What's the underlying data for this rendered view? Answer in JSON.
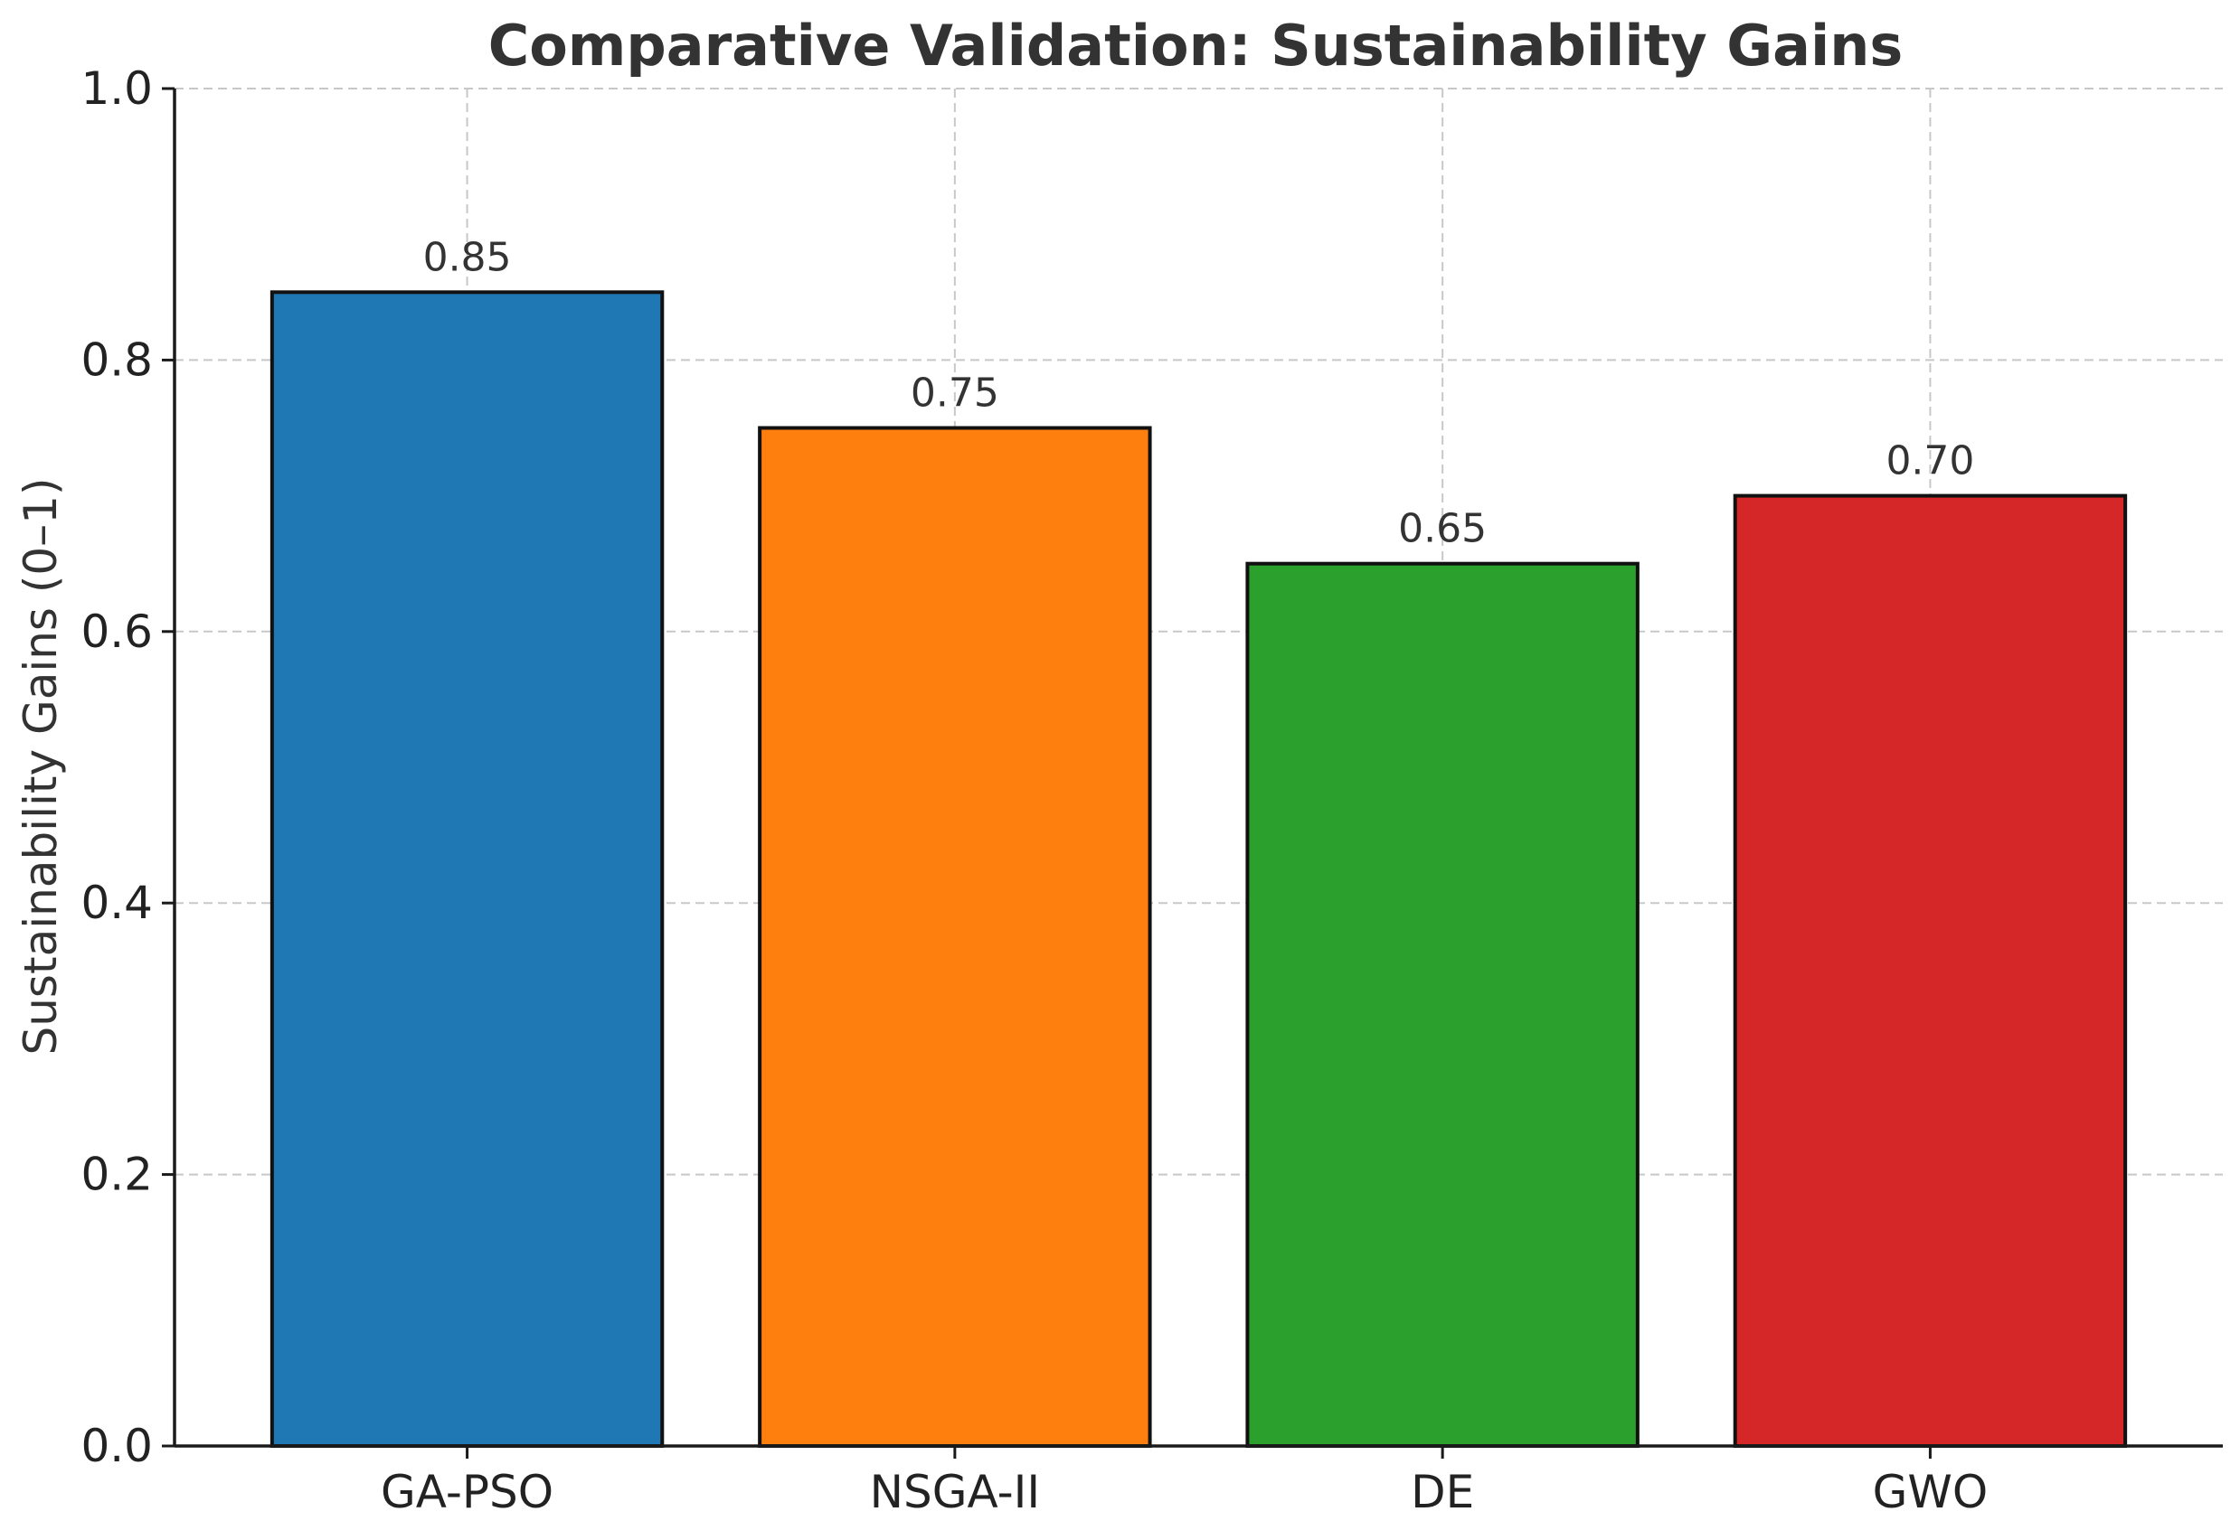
{
  "chart_data": {
    "type": "bar",
    "title": "Comparative Validation: Sustainability Gains",
    "xlabel": "",
    "ylabel": "Sustainability Gains (0–1)",
    "categories": [
      "GA-PSO",
      "NSGA-II",
      "DE",
      "GWO"
    ],
    "values": [
      0.85,
      0.75,
      0.65,
      0.7
    ],
    "value_labels": [
      "0.85",
      "0.75",
      "0.65",
      "0.70"
    ],
    "colors": [
      "#1f77b4",
      "#ff7f0e",
      "#2ca02c",
      "#d62728"
    ],
    "ylim": [
      0,
      1.0
    ],
    "yticks": [
      0.0,
      0.2,
      0.4,
      0.6,
      0.8,
      1.0
    ],
    "ytick_labels": [
      "0.0",
      "0.2",
      "0.4",
      "0.6",
      "0.8",
      "1.0"
    ],
    "grid": true
  }
}
